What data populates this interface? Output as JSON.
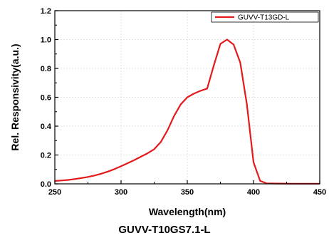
{
  "caption": "GUVV-T10GS7.1-L",
  "chart_data": {
    "type": "line",
    "xlabel": "Wavelength(nm)",
    "ylabel": "Rel. Responsivity(a.u.)",
    "xlim": [
      250,
      450
    ],
    "ylim": [
      0.0,
      1.2
    ],
    "xticks": [
      "250",
      "300",
      "350",
      "400",
      "450"
    ],
    "yticks": [
      "0.0",
      "0.2",
      "0.4",
      "0.6",
      "0.8",
      "1.0",
      "1.2"
    ],
    "grid": true,
    "legend_position": "top-right",
    "colors": {
      "series": "#e41a1c",
      "axis": "#000000",
      "grid": "#d9d9d9"
    },
    "series": [
      {
        "name": "GUVV-T13GD-L",
        "x": [
          250,
          255,
          260,
          265,
          270,
          275,
          280,
          285,
          290,
          295,
          300,
          305,
          310,
          315,
          320,
          325,
          330,
          335,
          340,
          345,
          350,
          355,
          360,
          365,
          370,
          375,
          380,
          385,
          390,
          395,
          400,
          405,
          410,
          420,
          430,
          440,
          450
        ],
        "y": [
          0.02,
          0.023,
          0.027,
          0.033,
          0.04,
          0.048,
          0.058,
          0.07,
          0.085,
          0.102,
          0.122,
          0.143,
          0.165,
          0.188,
          0.212,
          0.24,
          0.29,
          0.37,
          0.47,
          0.55,
          0.6,
          0.625,
          0.645,
          0.66,
          0.82,
          0.97,
          1.0,
          0.965,
          0.84,
          0.55,
          0.15,
          0.02,
          0.003,
          0.002,
          0.001,
          0.001,
          0.001
        ]
      }
    ]
  }
}
